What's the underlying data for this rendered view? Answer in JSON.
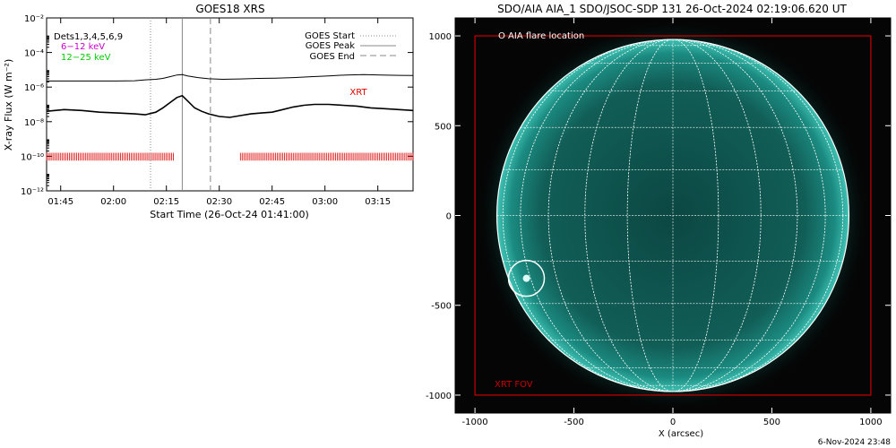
{
  "footer_timestamp": "6-Nov-2024 23:48",
  "chart_data": [
    {
      "type": "line",
      "title": "GOES18 XRS",
      "xlabel": "Start Time (26-Oct-24 01:41:00)",
      "ylabel": "X-ray Flux (W m⁻²)",
      "ylog": true,
      "xlim_minutes": [
        0,
        104
      ],
      "ylim": [
        1e-12,
        0.01
      ],
      "x_ticks": [
        "01:45",
        "02:00",
        "02:15",
        "02:30",
        "02:45",
        "03:00",
        "03:15"
      ],
      "x_tick_minutes": [
        4,
        19,
        34,
        49,
        64,
        79,
        94
      ],
      "y_ticks": [
        "10⁻¹²",
        "10⁻¹⁰",
        "10⁻⁸",
        "10⁻⁶",
        "10⁻⁴",
        "10⁻²"
      ],
      "y_tick_exponents": [
        -12,
        -10,
        -8,
        -6,
        -4,
        -2
      ],
      "legend_labels": {
        "dets": "Dets1,3,4,5,6,9",
        "low": "6−12 keV",
        "high": "12−25 keV",
        "start": "GOES Start",
        "peak": "GOES Peak",
        "end": "GOES End"
      },
      "legend_colors": {
        "low": "#cc00cc",
        "high": "#00cc00"
      },
      "markers": {
        "start": 29.5,
        "peak": 38.5,
        "end": 46.5
      },
      "xrt_label": "XRT",
      "xrt_color": "#dd0000",
      "xrt_coverage": [
        [
          0,
          36
        ],
        [
          55,
          104
        ]
      ],
      "series": [
        {
          "x": [
            0,
            10,
            20,
            25,
            28,
            31,
            33,
            35,
            37,
            38.5,
            40,
            43,
            46,
            50,
            55,
            60,
            65,
            70,
            75,
            80,
            85,
            90,
            95,
            100,
            104
          ],
          "y_log10": [
            -5.65,
            -5.65,
            -5.65,
            -5.63,
            -5.58,
            -5.55,
            -5.5,
            -5.4,
            -5.3,
            -5.28,
            -5.35,
            -5.45,
            -5.52,
            -5.55,
            -5.53,
            -5.5,
            -5.48,
            -5.45,
            -5.4,
            -5.35,
            -5.3,
            -5.28,
            -5.3,
            -5.32,
            -5.33
          ]
        },
        {
          "x": [
            0,
            5,
            10,
            15,
            20,
            25,
            28,
            31,
            33,
            35,
            37,
            38.5,
            40,
            42,
            44,
            46,
            49,
            52,
            55,
            58,
            61,
            64,
            67,
            70,
            73,
            76,
            80,
            84,
            88,
            92,
            96,
            100,
            104
          ],
          "y_log10": [
            -7.4,
            -7.3,
            -7.35,
            -7.45,
            -7.5,
            -7.55,
            -7.6,
            -7.45,
            -7.2,
            -6.9,
            -6.6,
            -6.5,
            -6.8,
            -7.2,
            -7.4,
            -7.55,
            -7.7,
            -7.75,
            -7.65,
            -7.55,
            -7.5,
            -7.45,
            -7.3,
            -7.15,
            -7.05,
            -7.0,
            -7.0,
            -7.05,
            -7.1,
            -7.2,
            -7.25,
            -7.3,
            -7.35
          ]
        }
      ]
    },
    {
      "type": "scatter",
      "title": "SDO/AIA AIA_1 SDO/JSOC-SDP 131 26-Oct-2024 02:19:06.620 UT",
      "xlabel": "X (arcsec)",
      "ylabel": "",
      "xlim": [
        -1100,
        1100
      ],
      "ylim": [
        -1100,
        1100
      ],
      "x_ticks": [
        -1000,
        -500,
        0,
        500,
        1000
      ],
      "y_ticks": [
        -1000,
        -500,
        0,
        500,
        1000
      ],
      "legend": "O AIA flare location",
      "fov_label": "XRT FOV",
      "fov_color": "#cc0000",
      "fov": [
        [
          -1000,
          -1000
        ],
        [
          1000,
          1000
        ]
      ],
      "solar_radius": 980,
      "flare_location": [
        -740,
        -350
      ],
      "disk_color": "#0d4e4a"
    }
  ]
}
